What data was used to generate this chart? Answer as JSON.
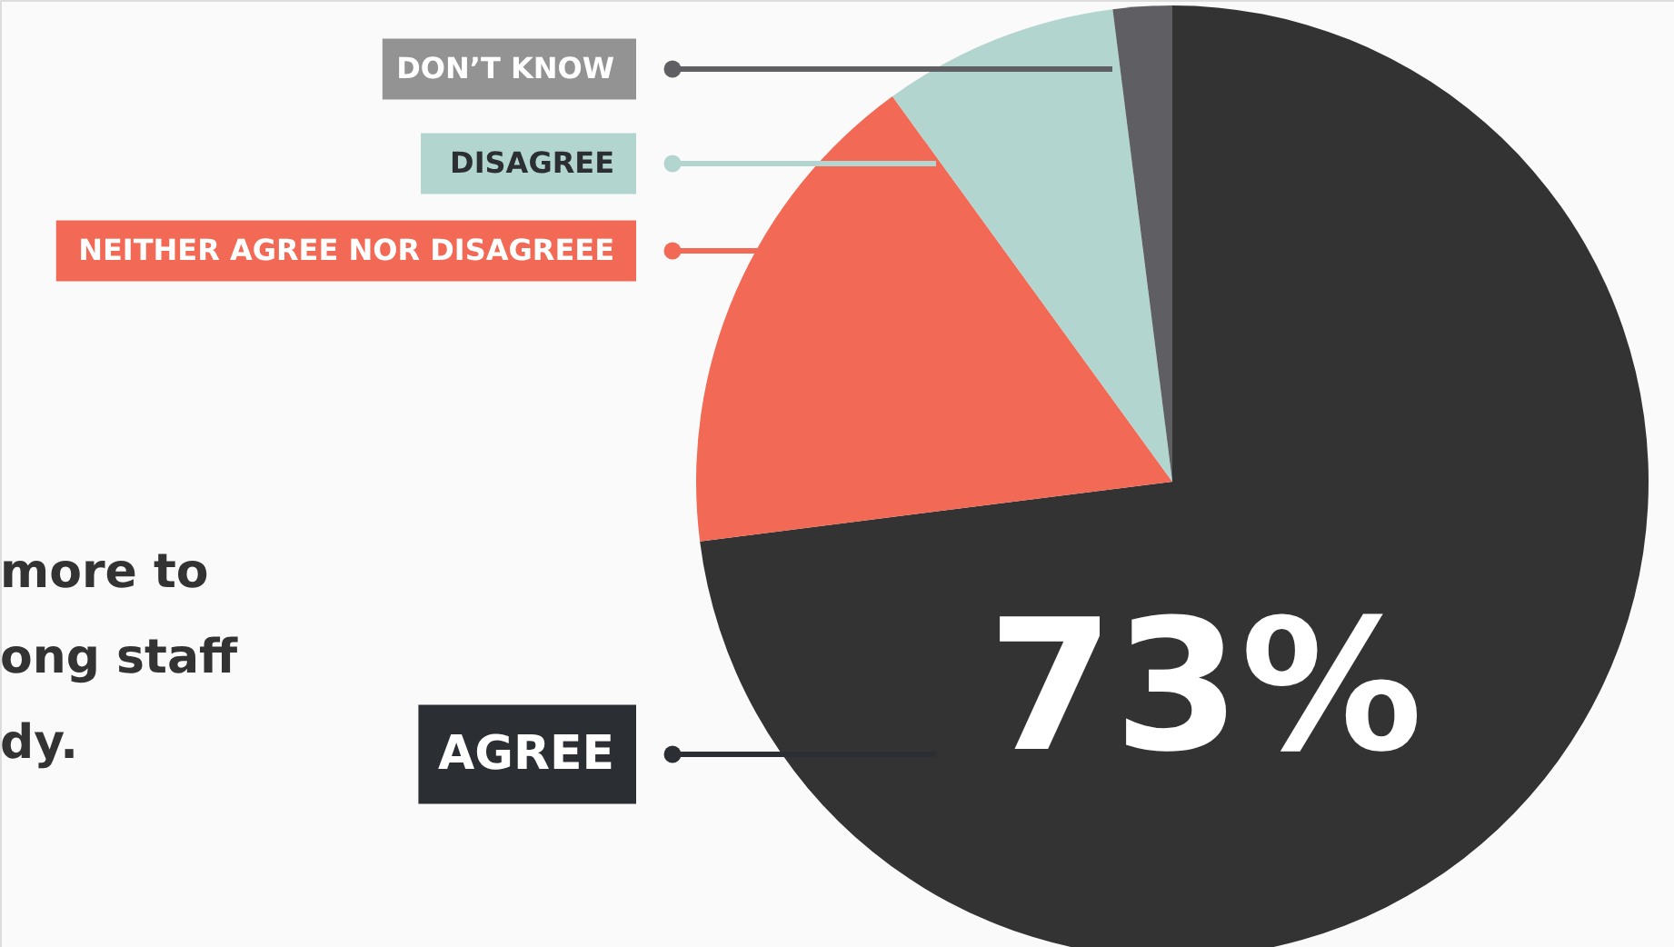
{
  "chart_data": {
    "type": "pie",
    "categories": [
      "AGREE",
      "NEITHER AGREE NOR DISAGREEE",
      "DISAGREE",
      "DON’T KNOW"
    ],
    "values": [
      73,
      17,
      8,
      2
    ],
    "colors": [
      "#333333",
      "#f26a55",
      "#b2d6cf",
      "#5f5f63"
    ],
    "value_labels": [
      "73%",
      null,
      null,
      null
    ],
    "legend": "left",
    "annotations": [
      "more to",
      "ong staff",
      "dy."
    ]
  }
}
